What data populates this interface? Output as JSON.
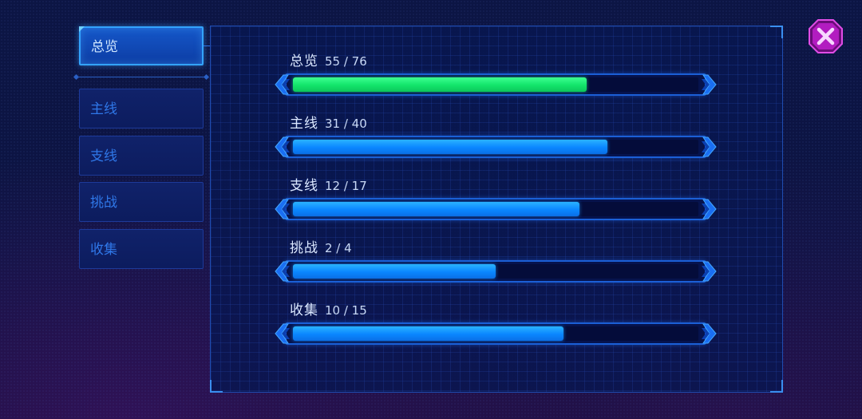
{
  "sidebar": {
    "tabs": [
      {
        "label": "总览",
        "active": true
      },
      {
        "label": "主线",
        "active": false
      },
      {
        "label": "支线",
        "active": false
      },
      {
        "label": "挑战",
        "active": false
      },
      {
        "label": "收集",
        "active": false
      }
    ]
  },
  "stats": [
    {
      "name": "总览",
      "progress": "55 / 76",
      "current": 55,
      "total": 76,
      "fill_color": "#12e46a"
    },
    {
      "name": "主线",
      "progress": "31 / 40",
      "current": 31,
      "total": 40,
      "fill_color": "#0a86ff"
    },
    {
      "name": "支线",
      "progress": "12 / 17",
      "current": 12,
      "total": 17,
      "fill_color": "#0a86ff"
    },
    {
      "name": "挑战",
      "progress": "2 / 4",
      "current": 2,
      "total": 4,
      "fill_color": "#0a86ff"
    },
    {
      "name": "收集",
      "progress": "10 / 15",
      "current": 10,
      "total": 15,
      "fill_color": "#0a86ff"
    }
  ],
  "close_button": {
    "icon": "close-icon",
    "color": "#c11fc4"
  },
  "colors": {
    "accent": "#33a3ff",
    "background": "#0c1544",
    "panel_border": "#1f4cb0"
  }
}
